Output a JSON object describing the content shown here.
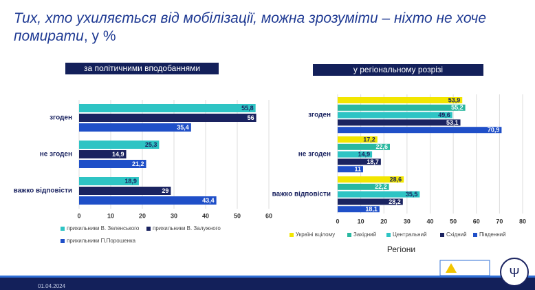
{
  "header": {
    "title": "Тих, хто ухиляється від мобілізації, можна зрозуміти – ніхто не хоче помирати",
    "unit": ", у %"
  },
  "chart_data": [
    {
      "type": "bar",
      "orientation": "horizontal",
      "title": "за політичними вподобаннями",
      "categories": [
        "згоден",
        "не згоден",
        "важко відповісти"
      ],
      "series": [
        {
          "name": "прихильники В. Зеленського",
          "color": "#2ec4c4",
          "values": [
            55.8,
            25.3,
            18.9
          ],
          "value_labels": [
            "55,8",
            "25,3",
            "18,9"
          ]
        },
        {
          "name": "прихильники В. Залужного",
          "color": "#1a2360",
          "values": [
            56,
            14.9,
            29
          ],
          "value_labels": [
            "56",
            "14,9",
            "29"
          ]
        },
        {
          "name": "прихильники П.Порошенка",
          "color": "#1f4fc8",
          "values": [
            35.4,
            21.2,
            43.4
          ],
          "value_labels": [
            "35,4",
            "21,2",
            "43,4"
          ]
        }
      ],
      "xlim": [
        0,
        60
      ],
      "xticks": [
        0,
        10,
        20,
        30,
        40,
        50,
        60
      ],
      "grid": true
    },
    {
      "type": "bar",
      "orientation": "horizontal",
      "title": "у регіональному розрізі",
      "xlabel": "Регіони",
      "categories": [
        "згоден",
        "не згоден",
        "важко відповісти"
      ],
      "series": [
        {
          "name": "Україні вцілому",
          "color": "#f2e600",
          "values": [
            53.9,
            17.2,
            28.6
          ],
          "value_labels": [
            "53,9",
            "17,2",
            "28,6"
          ]
        },
        {
          "name": "Західний",
          "color": "#2ab8a0",
          "values": [
            55.2,
            22.6,
            22.2
          ],
          "value_labels": [
            "55,2",
            "22,6",
            "22,2"
          ]
        },
        {
          "name": "Центральний",
          "color": "#2ec4c4",
          "values": [
            49.6,
            14.9,
            35.5
          ],
          "value_labels": [
            "49,6",
            "14,9",
            "35,5"
          ]
        },
        {
          "name": "Східний",
          "color": "#1a2360",
          "values": [
            53.1,
            18.7,
            28.2
          ],
          "value_labels": [
            "53,1",
            "18,7",
            "28,2"
          ]
        },
        {
          "name": "Південний",
          "color": "#1f4fc8",
          "values": [
            70.9,
            11,
            18.1
          ],
          "value_labels": [
            "70,9",
            "11",
            "18,1"
          ]
        }
      ],
      "xlim": [
        0,
        80
      ],
      "xticks": [
        0,
        10,
        20,
        30,
        40,
        50,
        60,
        70,
        80
      ],
      "grid": true
    }
  ],
  "footer": {
    "date": "01.04.2024"
  }
}
